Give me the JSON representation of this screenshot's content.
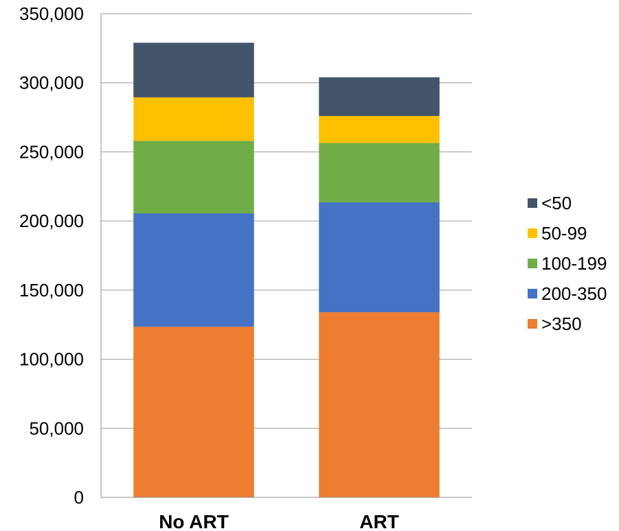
{
  "chart_data": {
    "type": "bar",
    "stacked": true,
    "categories": [
      "No ART",
      "ART"
    ],
    "series": [
      {
        "name": ">350",
        "color": "#ED7D31",
        "values": [
          123500,
          134000
        ]
      },
      {
        "name": "200-350",
        "color": "#4472C4",
        "values": [
          82000,
          79500
        ]
      },
      {
        "name": "100-199",
        "color": "#70AD47",
        "values": [
          52500,
          43000
        ]
      },
      {
        "name": "50-99",
        "color": "#FFC000",
        "values": [
          31500,
          19500
        ]
      },
      {
        "name": "<50",
        "color": "#44546A",
        "values": [
          39500,
          28000
        ]
      }
    ],
    "ylim": [
      0,
      350000
    ],
    "yticks": [
      "0",
      "50,000",
      "100,000",
      "150,000",
      "200,000",
      "250,000",
      "300,000",
      "350,000"
    ],
    "grid": true,
    "legend": "right"
  }
}
